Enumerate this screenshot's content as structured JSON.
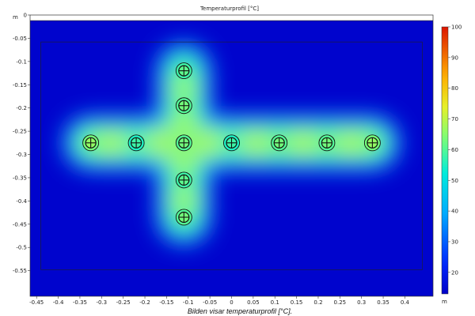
{
  "chart_data": {
    "type": "heatmap",
    "title": "Temperaturprofil [°C]",
    "caption": "Bilden visar temperaturprofil [°C].",
    "xunit": "m",
    "yunit": "m",
    "xlim": [
      -0.465,
      0.465
    ],
    "ylim": [
      -0.605,
      0.0
    ],
    "xticks": [
      -0.45,
      -0.4,
      -0.35,
      -0.3,
      -0.25,
      -0.2,
      -0.15,
      -0.1,
      -0.05,
      0,
      0.05,
      0.1,
      0.15,
      0.2,
      0.25,
      0.3,
      0.35,
      0.4
    ],
    "xtick_labels": [
      "-0.45",
      "-0.4",
      "-0.35",
      "-0.3",
      "-0.25",
      "-0.2",
      "-0.15",
      "-0.1",
      "-0.05",
      "0",
      "0.05",
      "0.1",
      "0.15",
      "0.2",
      "0.25",
      "0.3",
      "0.35",
      "0.4"
    ],
    "yticks": [
      0,
      -0.05,
      -0.1,
      -0.15,
      -0.2,
      -0.25,
      -0.3,
      -0.35,
      -0.4,
      -0.45,
      -0.5,
      -0.55
    ],
    "ytick_labels": [
      "0",
      "-0.05",
      "-0.1",
      "-0.15",
      "-0.2",
      "-0.25",
      "-0.3",
      "-0.35",
      "-0.4",
      "-0.45",
      "-0.5",
      "-0.55"
    ],
    "colorbar": {
      "min": 13,
      "max": 100,
      "ticks": [
        100,
        90,
        80,
        70,
        60,
        50,
        40,
        30,
        20
      ],
      "tick_labels": [
        "100",
        "90",
        "80",
        "70",
        "60",
        "50",
        "40",
        "30",
        "20"
      ],
      "colormap": "rainbow"
    },
    "air_region_ylim": [
      -0.012,
      0.0
    ],
    "domain_outline": {
      "x": [
        -0.44,
        0.44
      ],
      "y": [
        -0.548,
        -0.058
      ]
    },
    "pipes": [
      {
        "x": -0.325,
        "y": -0.275,
        "temp": 63
      },
      {
        "x": -0.22,
        "y": -0.275,
        "temp": 55
      },
      {
        "x": -0.11,
        "y": -0.275,
        "temp": 60
      },
      {
        "x": 0.0,
        "y": -0.275,
        "temp": 55
      },
      {
        "x": 0.11,
        "y": -0.275,
        "temp": 60
      },
      {
        "x": 0.22,
        "y": -0.275,
        "temp": 60
      },
      {
        "x": 0.325,
        "y": -0.275,
        "temp": 63
      },
      {
        "x": -0.11,
        "y": -0.12,
        "temp": 58
      },
      {
        "x": -0.11,
        "y": -0.195,
        "temp": 60
      },
      {
        "x": -0.11,
        "y": -0.355,
        "temp": 58
      },
      {
        "x": -0.11,
        "y": -0.435,
        "temp": 60
      }
    ],
    "background_temp": 14
  }
}
